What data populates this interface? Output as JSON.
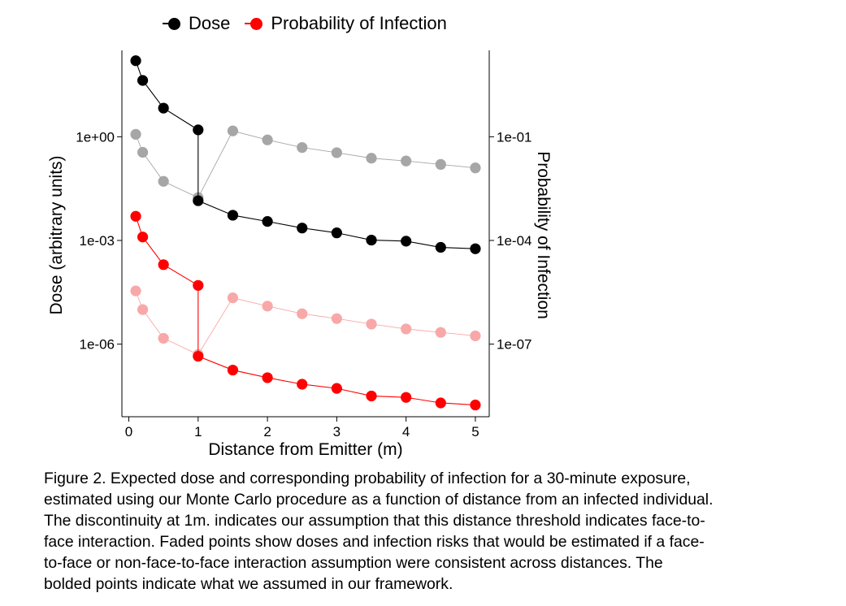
{
  "legend": {
    "dose_label": "Dose",
    "prob_label": "Probability of Infection"
  },
  "caption": {
    "lines": [
      "Figure 2. Expected dose and corresponding probability of infection for a 30-minute exposure,",
      "estimated using our Monte Carlo procedure as a function of distance from an infected individual.",
      "The discontinuity at 1m. indicates our assumption that this distance threshold indicates face-to-",
      "face interaction. Faded points show doses and infection risks that would be estimated if a face-",
      "to-face or non-face-to-face interaction assumption were consistent across distances. The",
      "bolded points indicate what we assumed in our framework."
    ]
  },
  "chart_data": {
    "type": "scatter",
    "xlabel": "Distance from Emitter (m)",
    "ylabel": "Dose (arbitrary units)",
    "ylabel_right": "Probability of Infection",
    "x_ticks": [
      0,
      1,
      2,
      3,
      4,
      5
    ],
    "y_ticks_left": [
      "1e+00",
      "1e-03",
      "1e-06"
    ],
    "y_ticks_right": [
      "1e-01",
      "1e-04",
      "1e-07"
    ],
    "y_scale": "log",
    "xlim": [
      -0.1,
      5.2
    ],
    "ylim_log10": [
      -8.1,
      2.5
    ],
    "colors": {
      "dose": "#000000",
      "dose_faded": "#a6a6a6",
      "prob": "#ff0000",
      "prob_faded": "#f8a8a8"
    },
    "series": [
      {
        "name": "Dose",
        "style": "bold",
        "x": [
          0.1,
          0.2,
          0.5,
          1.0,
          1.0,
          1.5,
          2.0,
          2.5,
          3.0,
          3.5,
          4.0,
          4.5,
          5.0
        ],
        "log10_y": [
          2.2,
          1.63,
          0.83,
          0.2,
          -1.85,
          -2.27,
          -2.45,
          -2.64,
          -2.78,
          -2.99,
          -3.02,
          -3.2,
          -3.24
        ]
      },
      {
        "name": "Dose",
        "style": "faded",
        "x": [
          0.1,
          0.2,
          0.5,
          1.0,
          1.5,
          2.0,
          2.5,
          3.0,
          3.5,
          4.0,
          4.5,
          5.0
        ],
        "log10_y": [
          0.07,
          -0.45,
          -1.29,
          -1.76,
          0.17,
          -0.09,
          -0.31,
          -0.46,
          -0.62,
          -0.7,
          -0.8,
          -0.9
        ]
      },
      {
        "name": "Probability of Infection",
        "style": "bold",
        "x": [
          0.1,
          0.2,
          0.5,
          1.0,
          1.0,
          1.5,
          2.0,
          2.5,
          3.0,
          3.5,
          4.0,
          4.5,
          5.0
        ],
        "log10_y": [
          -2.3,
          -2.9,
          -3.7,
          -4.3,
          -6.35,
          -6.75,
          -6.97,
          -7.16,
          -7.28,
          -7.5,
          -7.54,
          -7.7,
          -7.76
        ]
      },
      {
        "name": "Probability of Infection",
        "style": "faded",
        "x": [
          0.1,
          0.2,
          0.5,
          1.0,
          1.5,
          2.0,
          2.5,
          3.0,
          3.5,
          4.0,
          4.5,
          5.0
        ],
        "log10_y": [
          -4.46,
          -5.0,
          -5.83,
          -6.3,
          -4.66,
          -4.9,
          -5.12,
          -5.26,
          -5.42,
          -5.56,
          -5.66,
          -5.76
        ]
      }
    ]
  }
}
